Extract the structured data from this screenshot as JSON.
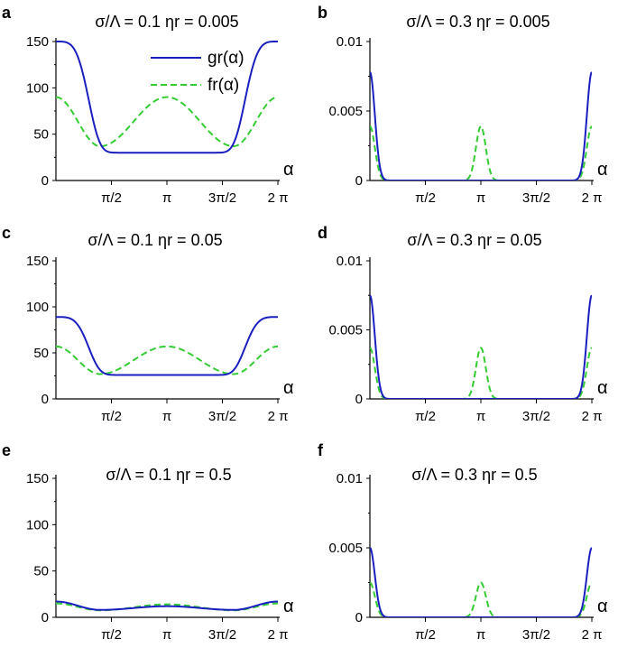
{
  "chart_data": [
    {
      "panel": "a",
      "type": "line",
      "title": "σ/Λ = 0.1   ηr = 0.005",
      "xlabel": "α",
      "xlim": [
        0,
        6.2832
      ],
      "ylim": [
        0,
        150
      ],
      "yticks": [
        "0",
        "50",
        "100",
        "150"
      ],
      "xticks": [
        "π/2",
        "π",
        "3π/2",
        "2 π"
      ],
      "legend": [
        "gr(α)",
        "fr(α)"
      ],
      "series": [
        {
          "name": "gr(α)",
          "style": "solid",
          "color": "#1a1fbf",
          "model": {
            "shape": "wide",
            "edge": 150,
            "base": 30,
            "width": 1.0,
            "power": 4
          }
        },
        {
          "name": "fr(α)",
          "style": "dashed",
          "color": "#33cc33",
          "model": {
            "shape": "cos2",
            "peak": 90,
            "min": 37,
            "min_at": 1.25
          }
        }
      ]
    },
    {
      "panel": "b",
      "type": "line",
      "title": "σ/Λ = 0.3   ηr = 0.005",
      "xlabel": "α",
      "xlim": [
        0,
        6.2832
      ],
      "ylim": [
        0,
        0.01
      ],
      "yticks": [
        "0",
        "0.005",
        "0.01"
      ],
      "xticks": [
        "π/2",
        "π",
        "3π/2",
        "2 π"
      ],
      "series": [
        {
          "name": "gr(α)",
          "style": "solid",
          "color": "#1a1fbf",
          "model": {
            "shape": "gauss_edges",
            "amp": 0.0078,
            "sigma": 0.14
          }
        },
        {
          "name": "fr(α)",
          "style": "dashed",
          "color": "#33cc33",
          "model": {
            "shape": "gauss_edges_center",
            "amp": 0.0039,
            "sigma": 0.14
          }
        }
      ]
    },
    {
      "panel": "c",
      "type": "line",
      "title": "σ/Λ = 0.1   ηr = 0.05",
      "xlabel": "α",
      "xlim": [
        0,
        6.2832
      ],
      "ylim": [
        0,
        150
      ],
      "yticks": [
        "0",
        "50",
        "100",
        "150"
      ],
      "xticks": [
        "π/2",
        "π",
        "3π/2",
        "2 π"
      ],
      "series": [
        {
          "name": "gr(α)",
          "style": "solid",
          "color": "#1a1fbf",
          "model": {
            "shape": "wide",
            "edge": 89,
            "base": 26,
            "width": 1.0,
            "power": 4
          }
        },
        {
          "name": "fr(α)",
          "style": "dashed",
          "color": "#33cc33",
          "model": {
            "shape": "cos2",
            "peak": 57,
            "min": 27,
            "min_at": 1.25
          }
        }
      ]
    },
    {
      "panel": "d",
      "type": "line",
      "title": "σ/Λ = 0.3   ηr = 0.05",
      "xlabel": "α",
      "xlim": [
        0,
        6.2832
      ],
      "ylim": [
        0,
        0.01
      ],
      "yticks": [
        "0",
        "0.005",
        "0.01"
      ],
      "xticks": [
        "π/2",
        "π",
        "3π/2",
        "2 π"
      ],
      "series": [
        {
          "name": "gr(α)",
          "style": "solid",
          "color": "#1a1fbf",
          "model": {
            "shape": "gauss_edges",
            "amp": 0.0075,
            "sigma": 0.14
          }
        },
        {
          "name": "fr(α)",
          "style": "dashed",
          "color": "#33cc33",
          "model": {
            "shape": "gauss_edges_center",
            "amp": 0.0037,
            "sigma": 0.14
          }
        }
      ]
    },
    {
      "panel": "e",
      "type": "line",
      "title": "σ/Λ = 0.1   ηr = 0.5",
      "xlabel": "α",
      "xlim": [
        0,
        6.2832
      ],
      "ylim": [
        0,
        150
      ],
      "yticks": [
        "0",
        "50",
        "100",
        "150"
      ],
      "xticks": [
        "π/2",
        "π",
        "3π/2",
        "2 π"
      ],
      "series": [
        {
          "name": "gr(α)",
          "style": "solid",
          "color": "#1a1fbf",
          "model": {
            "shape": "cos2",
            "peak": 12,
            "edge": 17,
            "min": 8,
            "min_at": 1.25
          }
        },
        {
          "name": "fr(α)",
          "style": "dashed",
          "color": "#33cc33",
          "model": {
            "shape": "cos2",
            "peak": 14,
            "edge": 15,
            "min": 7.5,
            "min_at": 1.25
          }
        }
      ]
    },
    {
      "panel": "f",
      "type": "line",
      "title": "σ/Λ = 0.3   ηr = 0.5",
      "xlabel": "α",
      "xlim": [
        0,
        6.2832
      ],
      "ylim": [
        0,
        0.01
      ],
      "yticks": [
        "0",
        "0.005",
        "0.01"
      ],
      "xticks": [
        "π/2",
        "π",
        "3π/2",
        "2 π"
      ],
      "series": [
        {
          "name": "gr(α)",
          "style": "solid",
          "color": "#1a1fbf",
          "model": {
            "shape": "gauss_edges",
            "amp": 0.005,
            "sigma": 0.14
          }
        },
        {
          "name": "fr(α)",
          "style": "dashed",
          "color": "#33cc33",
          "model": {
            "shape": "gauss_edges_center",
            "amp": 0.0025,
            "sigma": 0.14
          }
        }
      ]
    }
  ]
}
